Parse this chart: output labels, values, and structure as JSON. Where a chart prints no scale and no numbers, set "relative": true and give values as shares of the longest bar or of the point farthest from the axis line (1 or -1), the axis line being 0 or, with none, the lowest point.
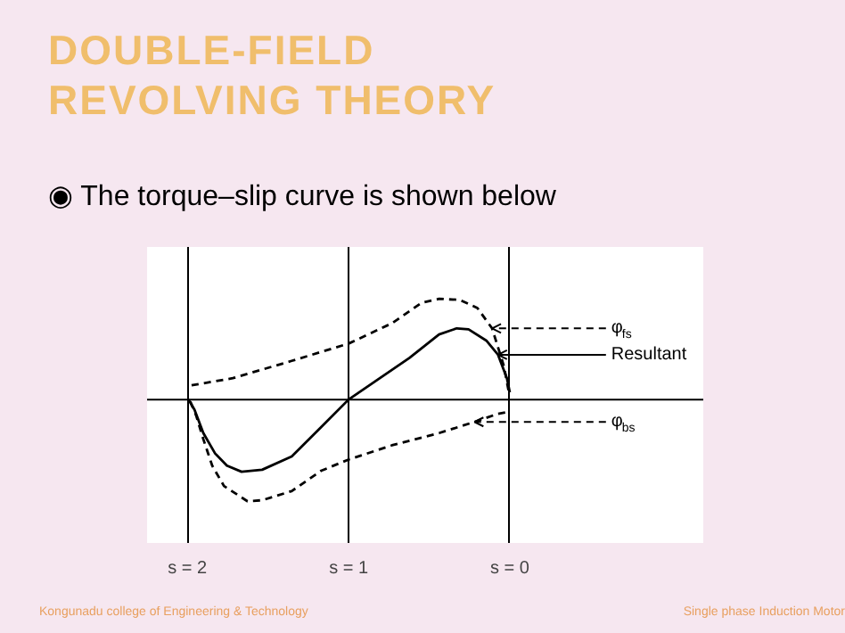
{
  "chart_data": {
    "type": "line",
    "relative": true,
    "title": "DOUBLE-FIELD REVOLVING THEORY",
    "annotations": [
      "◉ The torque–slip curve is shown below",
      "Kongunadu college of Engineering & Technology",
      "Single phase Induction Motor"
    ],
    "xlim": [
      2.25,
      -1.2
    ],
    "xticks": [
      {
        "value": 2,
        "label": "s = 2"
      },
      {
        "value": 1,
        "label": "s = 1"
      },
      {
        "value": 0,
        "label": "s = 0"
      }
    ],
    "grid": "x",
    "legend": "right",
    "marker": "none",
    "series": [
      {
        "name": "φ$_{fs}$",
        "color": "#000000",
        "line_style": "dashed",
        "x": [
          1.974,
          1.718,
          1.353,
          1.0,
          0.731,
          0.548,
          0.439,
          0.311,
          0.201,
          0.11,
          0.037,
          0.007
        ],
        "values": [
          0.14,
          0.21,
          0.38,
          0.55,
          0.75,
          0.95,
          0.99,
          0.98,
          0.9,
          0.7,
          0.33,
          0.08
        ]
      },
      {
        "name": "Resultant",
        "color": "#000000",
        "line_style": "solid",
        "x": [
          1.993,
          1.956,
          1.901,
          1.828,
          1.755,
          1.664,
          1.536,
          1.353,
          1.17,
          1.0,
          0.806,
          0.622,
          0.439,
          0.329,
          0.256,
          0.146,
          0.073,
          0.018,
          0.0
        ],
        "values": [
          0,
          -0.1,
          -0.33,
          -0.53,
          -0.65,
          -0.71,
          -0.69,
          -0.56,
          -0.27,
          0,
          0.21,
          0.41,
          0.64,
          0.7,
          0.69,
          0.58,
          0.44,
          0.21,
          0.07
        ]
      },
      {
        "name": "φ$_{bs}$",
        "color": "#000000",
        "line_style": "dashed",
        "x": [
          1.982,
          1.945,
          1.901,
          1.846,
          1.773,
          1.627,
          1.536,
          1.353,
          1.17,
          1.0,
          0.731,
          0.439,
          0.219,
          0.073,
          0.007
        ],
        "values": [
          -0.02,
          -0.16,
          -0.39,
          -0.65,
          -0.85,
          -1.0,
          -0.99,
          -0.9,
          -0.7,
          -0.59,
          -0.45,
          -0.33,
          -0.22,
          -0.14,
          -0.12
        ]
      }
    ]
  }
}
